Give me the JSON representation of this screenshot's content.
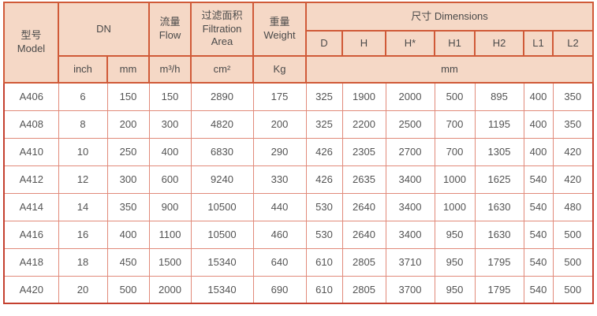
{
  "colors": {
    "header_bg": "#f5d8c6",
    "header_border": "#d05a38",
    "outer_border": "#c4402f",
    "grid_border": "#e18a7a",
    "text": "#4e4e4e"
  },
  "header": {
    "model_zh": "型号",
    "model_en": "Model",
    "dn": "DN",
    "flow_zh": "流量",
    "flow_en": "Flow",
    "filtration_zh": "过滤面积",
    "filtration_en": "Filtration Area",
    "weight_zh": "重量",
    "weight_en": "Weight",
    "dimensions": "尺寸 Dimensions",
    "dim_cols": [
      "D",
      "H",
      "H*",
      "H1",
      "H2",
      "L1",
      "L2"
    ],
    "units": {
      "dn_inch": "inch",
      "dn_mm": "mm",
      "flow": "m³/h",
      "filtration": "cm²",
      "weight": "Kg",
      "dimensions": "mm"
    }
  },
  "rows": [
    [
      "A406",
      "6",
      "150",
      "150",
      "2890",
      "175",
      "325",
      "1900",
      "2000",
      "500",
      "895",
      "400",
      "350"
    ],
    [
      "A408",
      "8",
      "200",
      "300",
      "4820",
      "200",
      "325",
      "2200",
      "2500",
      "700",
      "1195",
      "400",
      "350"
    ],
    [
      "A410",
      "10",
      "250",
      "400",
      "6830",
      "290",
      "426",
      "2305",
      "2700",
      "700",
      "1305",
      "400",
      "420"
    ],
    [
      "A412",
      "12",
      "300",
      "600",
      "9240",
      "330",
      "426",
      "2635",
      "3400",
      "1000",
      "1625",
      "540",
      "420"
    ],
    [
      "A414",
      "14",
      "350",
      "900",
      "10500",
      "440",
      "530",
      "2640",
      "3400",
      "1000",
      "1630",
      "540",
      "480"
    ],
    [
      "A416",
      "16",
      "400",
      "1100",
      "10500",
      "460",
      "530",
      "2640",
      "3400",
      "950",
      "1630",
      "540",
      "500"
    ],
    [
      "A418",
      "18",
      "450",
      "1500",
      "15340",
      "640",
      "610",
      "2805",
      "3710",
      "950",
      "1795",
      "540",
      "500"
    ],
    [
      "A420",
      "20",
      "500",
      "2000",
      "15340",
      "690",
      "610",
      "2805",
      "3700",
      "950",
      "1795",
      "540",
      "500"
    ]
  ]
}
